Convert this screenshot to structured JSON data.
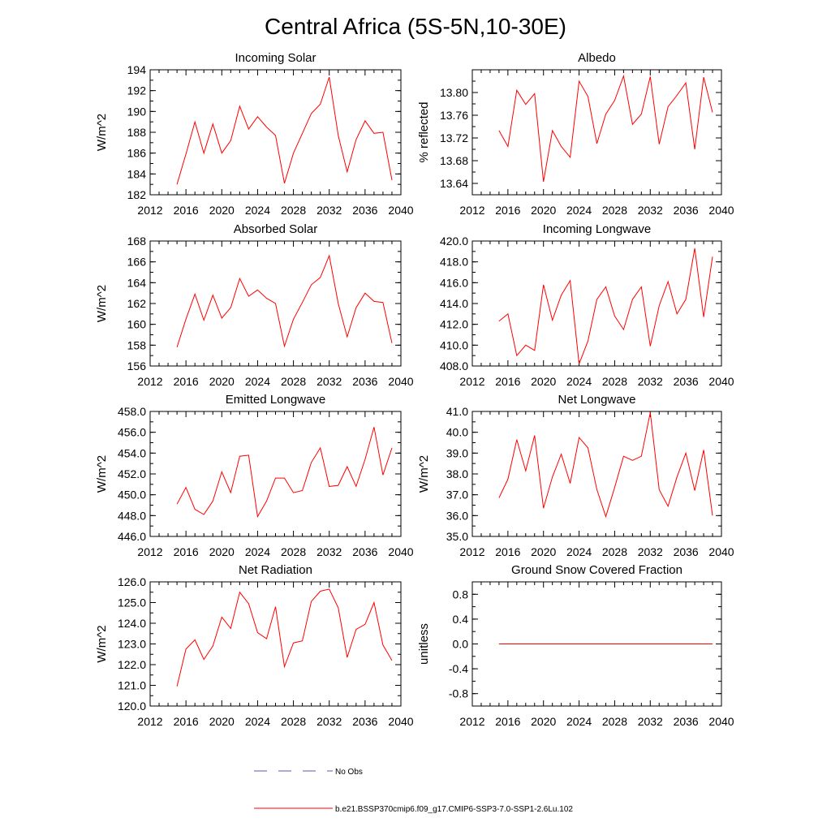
{
  "title": "Central Africa (5S-5N,10-30E)",
  "legend": {
    "entries": [
      {
        "label": "No Obs",
        "color": "#5a5ab4",
        "dash": "dashed"
      },
      {
        "label": "b.e21.BSSP370cmip6.f09_g17.CMIP6-SSP3-7.0-SSP1-2.6Lu.102",
        "color": "#ff0000",
        "dash": "solid"
      }
    ]
  },
  "chart_data": [
    {
      "type": "line",
      "title": "Incoming Solar",
      "ylabel": "W/m^2",
      "xlim": [
        2012,
        2040
      ],
      "ylim": [
        182,
        194
      ],
      "xticks": [
        "2012",
        "2016",
        "2020",
        "2024",
        "2028",
        "2032",
        "2036",
        "2040"
      ],
      "yticks": [
        "182",
        "184",
        "186",
        "188",
        "190",
        "192",
        "194"
      ],
      "color": "#ff0000",
      "x": [
        2015,
        2016,
        2017,
        2018,
        2019,
        2020,
        2021,
        2022,
        2023,
        2024,
        2025,
        2026,
        2027,
        2028,
        2029,
        2030,
        2031,
        2032,
        2033,
        2034,
        2035,
        2036,
        2037,
        2038,
        2039
      ],
      "y": [
        183.0,
        185.9,
        189.0,
        186.0,
        188.8,
        186.0,
        187.2,
        190.5,
        188.3,
        189.5,
        188.5,
        187.7,
        183.1,
        186.0,
        187.9,
        189.8,
        190.7,
        193.3,
        187.7,
        184.2,
        187.3,
        189.1,
        187.9,
        188.0,
        183.4
      ]
    },
    {
      "type": "line",
      "title": "Albedo",
      "ylabel": "% reflected",
      "xlim": [
        2012,
        2040
      ],
      "ylim": [
        13.62,
        13.84
      ],
      "xticks": [
        "2012",
        "2016",
        "2020",
        "2024",
        "2028",
        "2032",
        "2036",
        "2040"
      ],
      "yticks": [
        "13.64",
        "13.68",
        "13.72",
        "13.76",
        "13.80"
      ],
      "color": "#ff0000",
      "x": [
        2015,
        2016,
        2017,
        2018,
        2019,
        2020,
        2021,
        2022,
        2023,
        2024,
        2025,
        2026,
        2027,
        2028,
        2029,
        2030,
        2031,
        2032,
        2033,
        2034,
        2035,
        2036,
        2037,
        2038,
        2039
      ],
      "y": [
        13.733,
        13.705,
        13.804,
        13.779,
        13.798,
        13.643,
        13.733,
        13.705,
        13.686,
        13.82,
        13.793,
        13.71,
        13.762,
        13.786,
        13.829,
        13.744,
        13.762,
        13.828,
        13.709,
        13.775,
        13.795,
        13.817,
        13.7,
        13.827,
        13.765
      ]
    },
    {
      "type": "line",
      "title": "Absorbed Solar",
      "ylabel": "W/m^2",
      "xlim": [
        2012,
        2040
      ],
      "ylim": [
        156,
        168
      ],
      "xticks": [
        "2012",
        "2016",
        "2020",
        "2024",
        "2028",
        "2032",
        "2036",
        "2040"
      ],
      "yticks": [
        "156",
        "158",
        "160",
        "162",
        "164",
        "166",
        "168"
      ],
      "color": "#ff0000",
      "x": [
        2015,
        2016,
        2017,
        2018,
        2019,
        2020,
        2021,
        2022,
        2023,
        2024,
        2025,
        2026,
        2027,
        2028,
        2029,
        2030,
        2031,
        2032,
        2033,
        2034,
        2035,
        2036,
        2037,
        2038,
        2039
      ],
      "y": [
        157.8,
        160.5,
        162.9,
        160.4,
        162.8,
        160.6,
        161.6,
        164.4,
        162.7,
        163.3,
        162.5,
        162.0,
        157.9,
        160.5,
        162.1,
        163.8,
        164.5,
        166.6,
        162.0,
        158.8,
        161.6,
        163.0,
        162.2,
        162.1,
        158.2
      ]
    },
    {
      "type": "line",
      "title": "Incoming Longwave",
      "ylabel": "",
      "xlim": [
        2012,
        2040
      ],
      "ylim": [
        408,
        420
      ],
      "xticks": [
        "2012",
        "2016",
        "2020",
        "2024",
        "2028",
        "2032",
        "2036",
        "2040"
      ],
      "yticks": [
        "408.0",
        "410.0",
        "412.0",
        "414.0",
        "416.0",
        "418.0",
        "420.0"
      ],
      "color": "#ff0000",
      "x": [
        2015,
        2016,
        2017,
        2018,
        2019,
        2020,
        2021,
        2022,
        2023,
        2024,
        2025,
        2026,
        2027,
        2028,
        2029,
        2030,
        2031,
        2032,
        2033,
        2034,
        2035,
        2036,
        2037,
        2038,
        2039
      ],
      "y": [
        412.3,
        413.0,
        409.0,
        410.0,
        409.5,
        415.8,
        412.4,
        414.8,
        416.2,
        408.2,
        410.4,
        414.4,
        415.6,
        412.8,
        411.5,
        414.4,
        415.6,
        409.9,
        413.8,
        416.1,
        413.0,
        414.4,
        419.3,
        412.7,
        418.5
      ]
    },
    {
      "type": "line",
      "title": "Emitted Longwave",
      "ylabel": "W/m^2",
      "xlim": [
        2012,
        2040
      ],
      "ylim": [
        446,
        458
      ],
      "xticks": [
        "2012",
        "2016",
        "2020",
        "2024",
        "2028",
        "2032",
        "2036",
        "2040"
      ],
      "yticks": [
        "446.0",
        "448.0",
        "450.0",
        "452.0",
        "454.0",
        "456.0",
        "458.0"
      ],
      "color": "#ff0000",
      "x": [
        2015,
        2016,
        2017,
        2018,
        2019,
        2020,
        2021,
        2022,
        2023,
        2024,
        2025,
        2026,
        2027,
        2028,
        2029,
        2030,
        2031,
        2032,
        2033,
        2034,
        2035,
        2036,
        2037,
        2038,
        2039
      ],
      "y": [
        449.1,
        450.7,
        448.6,
        448.1,
        449.4,
        452.2,
        450.2,
        453.7,
        453.8,
        447.9,
        449.4,
        451.6,
        451.6,
        450.2,
        450.4,
        453.1,
        454.5,
        450.8,
        450.9,
        452.7,
        450.8,
        453.4,
        456.5,
        451.9,
        454.5
      ]
    },
    {
      "type": "line",
      "title": "Net Longwave",
      "ylabel": "W/m^2",
      "xlim": [
        2012,
        2040
      ],
      "ylim": [
        35,
        41
      ],
      "xticks": [
        "2012",
        "2016",
        "2020",
        "2024",
        "2028",
        "2032",
        "2036",
        "2040"
      ],
      "yticks": [
        "35.0",
        "36.0",
        "37.0",
        "38.0",
        "39.0",
        "40.0",
        "41.0"
      ],
      "color": "#ff0000",
      "x": [
        2015,
        2016,
        2017,
        2018,
        2019,
        2020,
        2021,
        2022,
        2023,
        2024,
        2025,
        2026,
        2027,
        2028,
        2029,
        2030,
        2031,
        2032,
        2033,
        2034,
        2035,
        2036,
        2037,
        2038,
        2039
      ],
      "y": [
        36.85,
        37.75,
        39.65,
        38.15,
        39.85,
        36.35,
        37.85,
        38.95,
        37.55,
        39.75,
        39.25,
        37.25,
        35.95,
        37.35,
        38.85,
        38.65,
        38.85,
        40.95,
        37.25,
        36.45,
        37.85,
        39.0,
        37.2,
        39.15,
        36.0
      ]
    },
    {
      "type": "line",
      "title": "Net Radiation",
      "ylabel": "W/m^2",
      "xlim": [
        2012,
        2040
      ],
      "ylim": [
        120,
        126
      ],
      "xticks": [
        "2012",
        "2016",
        "2020",
        "2024",
        "2028",
        "2032",
        "2036",
        "2040"
      ],
      "yticks": [
        "120.0",
        "121.0",
        "122.0",
        "123.0",
        "124.0",
        "125.0",
        "126.0"
      ],
      "color": "#ff0000",
      "x": [
        2015,
        2016,
        2017,
        2018,
        2019,
        2020,
        2021,
        2022,
        2023,
        2024,
        2025,
        2026,
        2027,
        2028,
        2029,
        2030,
        2031,
        2032,
        2033,
        2034,
        2035,
        2036,
        2037,
        2038,
        2039
      ],
      "y": [
        120.95,
        122.75,
        123.2,
        122.25,
        122.9,
        124.3,
        123.75,
        125.5,
        124.95,
        123.55,
        123.25,
        124.8,
        121.9,
        123.05,
        123.15,
        125.05,
        125.55,
        125.65,
        124.75,
        122.35,
        123.7,
        123.95,
        125.0,
        122.95,
        122.2
      ]
    },
    {
      "type": "line",
      "title": "Ground Snow Covered Fraction",
      "ylabel": "unitless",
      "xlim": [
        2012,
        2040
      ],
      "ylim": [
        -1.0,
        1.0
      ],
      "xticks": [
        "2012",
        "2016",
        "2020",
        "2024",
        "2028",
        "2032",
        "2036",
        "2040"
      ],
      "yticks": [
        "-0.8",
        "-0.4",
        "0.0",
        "0.4",
        "0.8"
      ],
      "color": "#ff0000",
      "x": [
        2015,
        2016,
        2017,
        2018,
        2019,
        2020,
        2021,
        2022,
        2023,
        2024,
        2025,
        2026,
        2027,
        2028,
        2029,
        2030,
        2031,
        2032,
        2033,
        2034,
        2035,
        2036,
        2037,
        2038,
        2039
      ],
      "y": [
        0,
        0,
        0,
        0,
        0,
        0,
        0,
        0,
        0,
        0,
        0,
        0,
        0,
        0,
        0,
        0,
        0,
        0,
        0,
        0,
        0,
        0,
        0,
        0,
        0
      ]
    }
  ]
}
